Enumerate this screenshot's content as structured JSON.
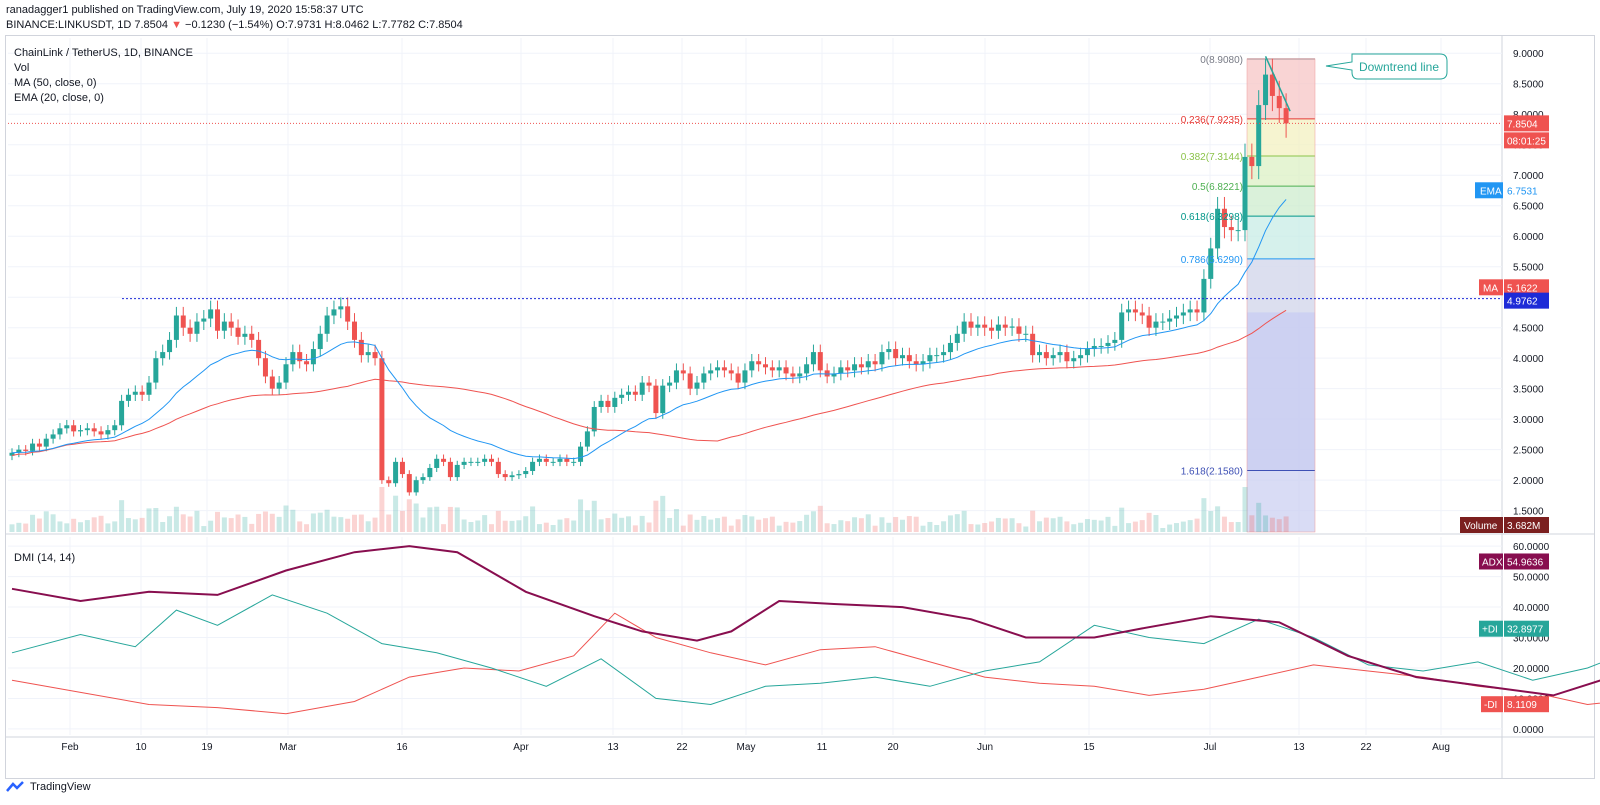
{
  "header": {
    "published_by": "ranadagger1 published on TradingView.com, July 19, 2020 15:58:37 UTC",
    "symbol": "BINANCE:LINKUSDT, 1D",
    "last": "7.8504",
    "change_arrow": "▼",
    "change": "−0.1230 (−1.54%)",
    "ohlc": "O:7.9731 H:8.0462 L:7.7782 C:7.8504"
  },
  "legend": {
    "title": "ChainLink / TetherUS, 1D, BINANCE",
    "vol": "Vol",
    "ma": "MA (50, close, 0)",
    "ema": "EMA (20, close, 0)",
    "dmi": "DMI (14, 14)"
  },
  "footer": {
    "brand": "TradingView"
  },
  "colors": {
    "up": "#26a69a",
    "down": "#ef5350",
    "ema": "#2196f3",
    "ma": "#ef5350",
    "adx": "#880e4f",
    "plus_di": "#26a69a",
    "minus_di": "#ef5350",
    "resistance": "#1e2bd7"
  },
  "chart_data": [
    {
      "type": "candlestick",
      "title": "ChainLink / TetherUS, 1D, BINANCE",
      "y_axis": {
        "ticks": [
          "1.5000",
          "2.0000",
          "2.5000",
          "3.0000",
          "3.5000",
          "4.0000",
          "4.5000",
          "5.0000",
          "5.5000",
          "6.0000",
          "6.5000",
          "7.0000",
          "7.5000",
          "8.0000",
          "8.5000",
          "9.0000"
        ],
        "range": [
          1.15,
          9.25
        ]
      },
      "x_axis": {
        "ticks": [
          "Feb",
          "10",
          "19",
          "Mar",
          "16",
          "Apr",
          "13",
          "22",
          "May",
          "11",
          "20",
          "Jun",
          "15",
          "Jul",
          "13",
          "22",
          "Aug"
        ]
      },
      "price_label": {
        "value": "7.8504",
        "countdown": "08:01:25"
      },
      "ema_label": {
        "name": "EMA",
        "value": "6.7531"
      },
      "ma_label": {
        "name": "MA",
        "value": "5.1622"
      },
      "resistance_label": {
        "value": "4.9762"
      },
      "volume_label": {
        "name": "Volume",
        "value": "3.682M"
      },
      "fibonacci": [
        {
          "label": "0(8.9080)",
          "value": 8.908
        },
        {
          "label": "0.236(7.9235)",
          "value": 7.9235
        },
        {
          "label": "0.382(7.3144)",
          "value": 7.3144
        },
        {
          "label": "0.5(6.8221)",
          "value": 6.8221
        },
        {
          "label": "0.618(6.3298)",
          "value": 6.3298
        },
        {
          "label": "0.786(5.6290)",
          "value": 5.629
        },
        {
          "label": "1.618(2.1580)",
          "value": 2.158
        }
      ],
      "annotation": "Downtrend line",
      "closes": [
        2.45,
        2.5,
        2.48,
        2.6,
        2.55,
        2.68,
        2.75,
        2.85,
        2.9,
        2.8,
        2.82,
        2.85,
        2.8,
        2.75,
        2.82,
        2.9,
        3.3,
        3.4,
        3.45,
        3.4,
        3.6,
        4.0,
        4.1,
        4.3,
        4.7,
        4.5,
        4.4,
        4.6,
        4.65,
        4.8,
        4.45,
        4.6,
        4.5,
        4.35,
        4.4,
        4.3,
        4.0,
        3.7,
        3.5,
        3.6,
        3.9,
        4.1,
        3.95,
        3.9,
        4.15,
        4.4,
        4.7,
        4.8,
        4.85,
        4.6,
        4.3,
        4.05,
        4.1,
        4.0,
        2.0,
        1.95,
        2.3,
        2.1,
        1.8,
        2.0,
        2.05,
        2.2,
        2.35,
        2.3,
        2.05,
        2.25,
        2.3,
        2.3,
        2.3,
        2.35,
        2.3,
        2.1,
        2.05,
        2.08,
        2.1,
        2.15,
        2.3,
        2.35,
        2.3,
        2.3,
        2.35,
        2.3,
        2.3,
        2.55,
        2.8,
        3.2,
        3.3,
        3.2,
        3.35,
        3.4,
        3.45,
        3.4,
        3.6,
        3.55,
        3.1,
        3.55,
        3.6,
        3.8,
        3.75,
        3.5,
        3.6,
        3.75,
        3.8,
        3.85,
        3.8,
        3.75,
        3.6,
        3.8,
        3.95,
        3.9,
        3.85,
        3.8,
        3.85,
        3.75,
        3.7,
        3.75,
        3.9,
        4.1,
        3.8,
        3.7,
        3.75,
        3.85,
        3.8,
        3.9,
        3.85,
        3.95,
        3.9,
        4.1,
        4.15,
        4.0,
        4.05,
        3.95,
        3.9,
        3.95,
        4.05,
        4.05,
        4.1,
        4.25,
        4.4,
        4.6,
        4.5,
        4.55,
        4.5,
        4.45,
        4.55,
        4.5,
        4.52,
        4.4,
        4.4,
        4.05,
        4.1,
        4.0,
        4.05,
        4.1,
        3.95,
        4.0,
        4.05,
        4.15,
        4.2,
        4.2,
        4.25,
        4.3,
        4.75,
        4.8,
        4.75,
        4.7,
        4.5,
        4.6,
        4.6,
        4.65,
        4.7,
        4.75,
        4.8,
        4.75,
        5.3,
        5.8,
        6.45,
        6.15,
        6.1,
        6.1,
        7.3,
        7.15,
        8.15,
        8.65,
        8.3,
        8.1,
        7.85
      ]
    },
    {
      "type": "line",
      "title": "DMI (14, 14)",
      "y_axis": {
        "ticks": [
          "0.0000",
          "10.0000",
          "20.0000",
          "30.0000",
          "40.0000",
          "50.0000",
          "60.0000"
        ],
        "range": [
          -2,
          63
        ]
      },
      "series": [
        {
          "name": "ADX",
          "last": "54.9636"
        },
        {
          "name": "+DI",
          "last": "32.8977"
        },
        {
          "name": "-DI",
          "last": "8.1109"
        }
      ],
      "adx": [
        [
          0,
          46
        ],
        [
          10,
          42
        ],
        [
          20,
          45
        ],
        [
          30,
          44
        ],
        [
          40,
          52
        ],
        [
          50,
          58
        ],
        [
          58,
          60
        ],
        [
          65,
          58
        ],
        [
          75,
          45
        ],
        [
          85,
          37
        ],
        [
          92,
          32
        ],
        [
          100,
          29
        ],
        [
          105,
          32
        ],
        [
          112,
          42
        ],
        [
          120,
          41
        ],
        [
          130,
          40
        ],
        [
          140,
          36
        ],
        [
          148,
          30
        ],
        [
          158,
          30
        ],
        [
          165,
          33
        ],
        [
          175,
          37
        ],
        [
          185,
          35
        ],
        [
          195,
          24
        ],
        [
          205,
          17
        ],
        [
          215,
          14
        ],
        [
          225,
          11
        ],
        [
          232,
          16
        ],
        [
          242,
          23
        ],
        [
          250,
          25
        ],
        [
          258,
          22
        ],
        [
          265,
          24
        ],
        [
          272,
          21
        ],
        [
          280,
          21
        ],
        [
          290,
          35
        ],
        [
          300,
          48
        ],
        [
          310,
          55
        ]
      ],
      "plus_di": [
        [
          0,
          25
        ],
        [
          10,
          31
        ],
        [
          18,
          27
        ],
        [
          24,
          39
        ],
        [
          30,
          34
        ],
        [
          38,
          44
        ],
        [
          46,
          38
        ],
        [
          54,
          28
        ],
        [
          62,
          25
        ],
        [
          70,
          20
        ],
        [
          78,
          14
        ],
        [
          86,
          23
        ],
        [
          94,
          10
        ],
        [
          102,
          8
        ],
        [
          110,
          14
        ],
        [
          118,
          15
        ],
        [
          126,
          17
        ],
        [
          134,
          14
        ],
        [
          142,
          19
        ],
        [
          150,
          22
        ],
        [
          158,
          34
        ],
        [
          166,
          30
        ],
        [
          174,
          28
        ],
        [
          182,
          36
        ],
        [
          190,
          30
        ],
        [
          198,
          21
        ],
        [
          206,
          19
        ],
        [
          214,
          22
        ],
        [
          222,
          16
        ],
        [
          230,
          20
        ],
        [
          238,
          27
        ],
        [
          246,
          20
        ],
        [
          254,
          18
        ],
        [
          262,
          25
        ],
        [
          270,
          21
        ],
        [
          278,
          20
        ],
        [
          286,
          42
        ],
        [
          292,
          49
        ],
        [
          296,
          40
        ],
        [
          302,
          33
        ]
      ],
      "minus_di": [
        [
          0,
          16
        ],
        [
          10,
          12
        ],
        [
          20,
          8
        ],
        [
          30,
          7
        ],
        [
          40,
          5
        ],
        [
          50,
          9
        ],
        [
          58,
          17
        ],
        [
          66,
          20
        ],
        [
          74,
          19
        ],
        [
          82,
          24
        ],
        [
          88,
          38
        ],
        [
          94,
          30
        ],
        [
          102,
          25
        ],
        [
          110,
          21
        ],
        [
          118,
          26
        ],
        [
          126,
          27
        ],
        [
          134,
          22
        ],
        [
          142,
          17
        ],
        [
          150,
          15
        ],
        [
          158,
          14
        ],
        [
          166,
          11
        ],
        [
          174,
          13
        ],
        [
          182,
          17
        ],
        [
          190,
          21
        ],
        [
          198,
          19
        ],
        [
          206,
          17
        ],
        [
          214,
          14
        ],
        [
          222,
          12
        ],
        [
          230,
          8
        ],
        [
          238,
          10
        ],
        [
          246,
          17
        ],
        [
          254,
          24
        ],
        [
          262,
          26
        ],
        [
          270,
          18
        ],
        [
          278,
          11
        ],
        [
          286,
          8
        ],
        [
          294,
          4
        ],
        [
          300,
          3
        ],
        [
          305,
          8
        ]
      ]
    }
  ]
}
